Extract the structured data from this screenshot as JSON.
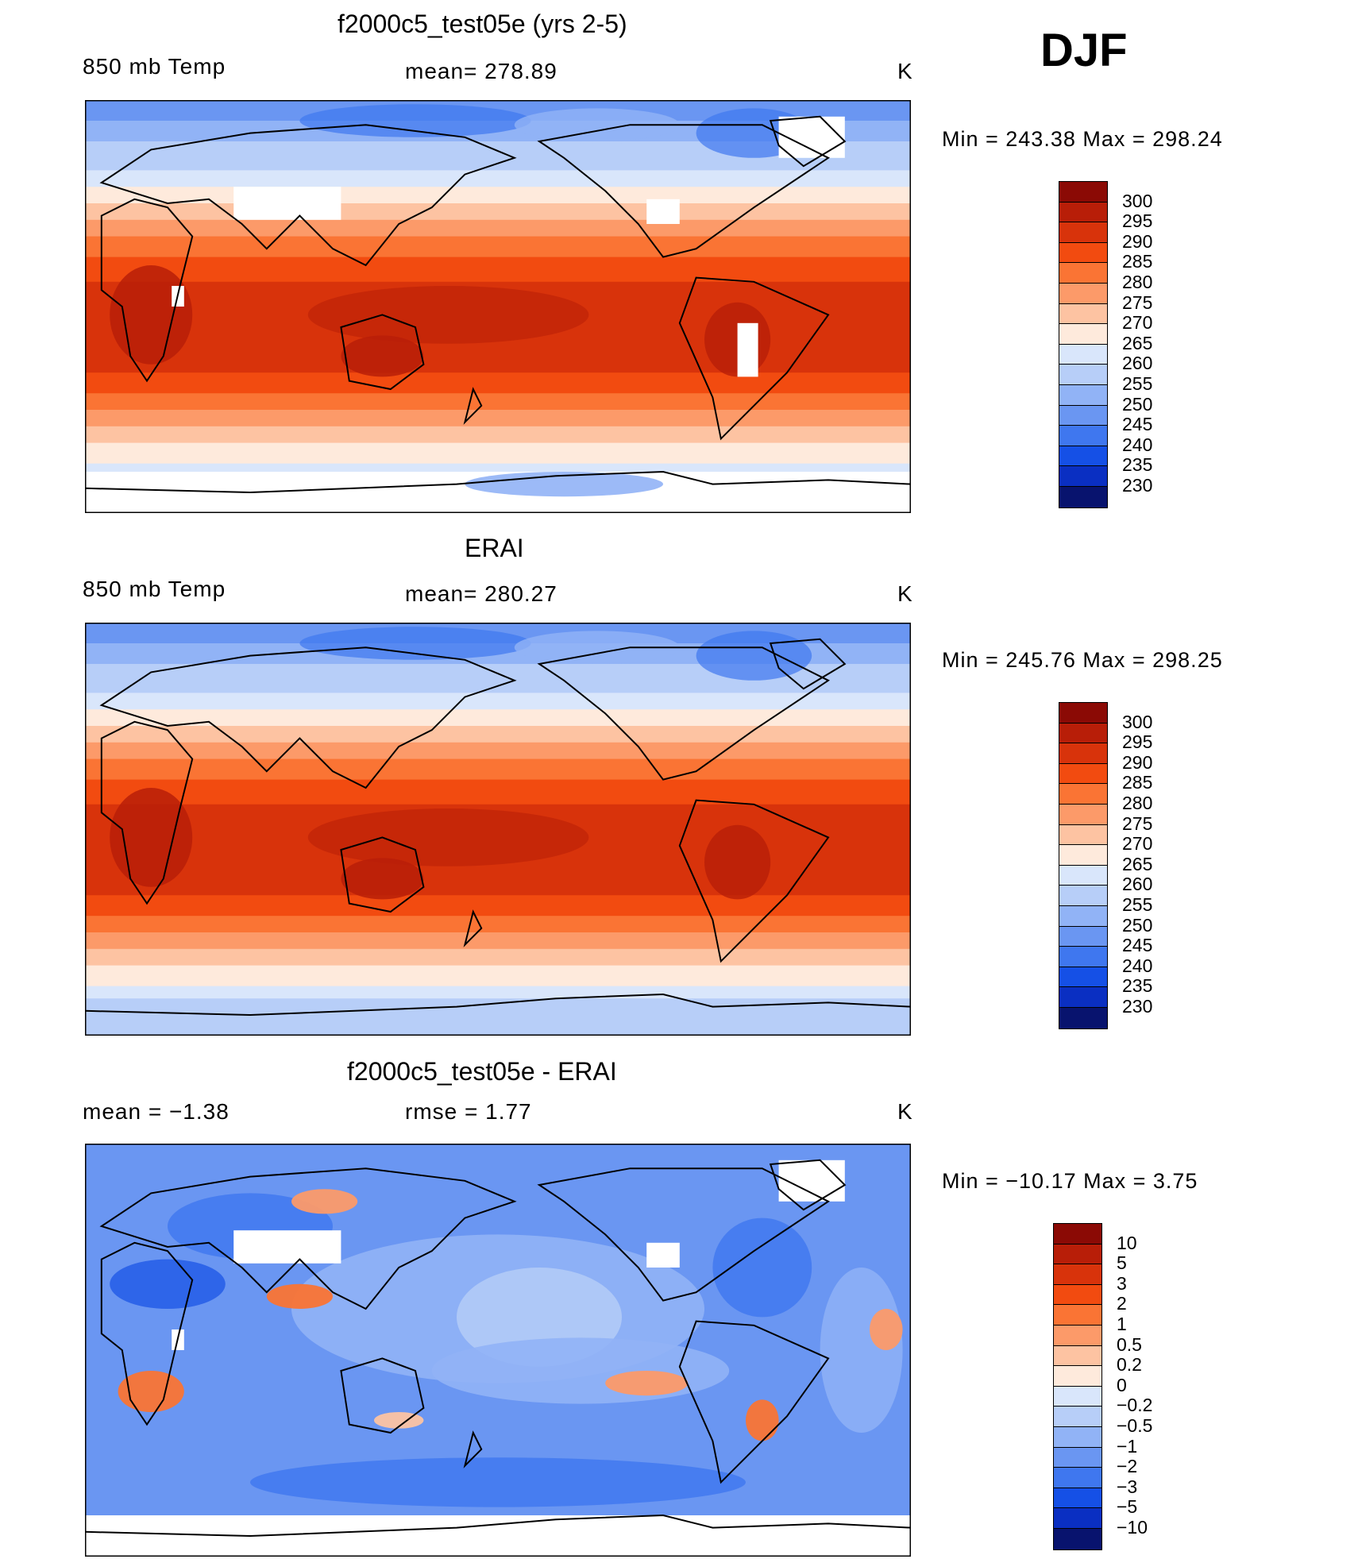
{
  "season": "DJF",
  "panels": [
    {
      "title": "f2000c5_test05e (yrs 2-5)",
      "left_label": "850 mb Temp",
      "center_label": "mean= 278.89",
      "units": "K",
      "minmax": "Min = 243.38 Max = 298.24",
      "map_style": "model"
    },
    {
      "title": "ERAI",
      "left_label": "850 mb Temp",
      "center_label": "mean= 280.27",
      "units": "K",
      "minmax": "Min = 245.76 Max = 298.25",
      "map_style": "obs"
    },
    {
      "title": "f2000c5_test05e - ERAI",
      "left_label": "mean =   −1.38",
      "center_label": "rmse =    1.77",
      "units": "K",
      "minmax": "Min = −10.17 Max =     3.75",
      "map_style": "diff"
    }
  ],
  "colorbar_abs": {
    "levels": [
      "300",
      "295",
      "290",
      "285",
      "280",
      "275",
      "270",
      "265",
      "260",
      "255",
      "250",
      "245",
      "240",
      "235",
      "230"
    ],
    "colors": [
      "#8b0a05",
      "#b81e08",
      "#d8330b",
      "#f24b10",
      "#fa7434",
      "#fc9a69",
      "#fdc3a2",
      "#feeadc",
      "#d9e6fb",
      "#b7cef8",
      "#91b3f6",
      "#6a96f2",
      "#3f77ef",
      "#1550e6",
      "#0a2fc2",
      "#08136e"
    ]
  },
  "colorbar_diff": {
    "levels": [
      "10",
      "5",
      "3",
      "2",
      "1",
      "0.5",
      "0.2",
      "0",
      "−0.2",
      "−0.5",
      "−1",
      "−2",
      "−3",
      "−5",
      "−10"
    ],
    "colors": [
      "#8b0a05",
      "#b81e08",
      "#d8330b",
      "#f24b10",
      "#fa7434",
      "#fc9a69",
      "#fdc3a2",
      "#feeadc",
      "#d9e6fb",
      "#b7cef8",
      "#91b3f6",
      "#6a96f2",
      "#3f77ef",
      "#1550e6",
      "#0a2fc2",
      "#08136e"
    ]
  }
}
